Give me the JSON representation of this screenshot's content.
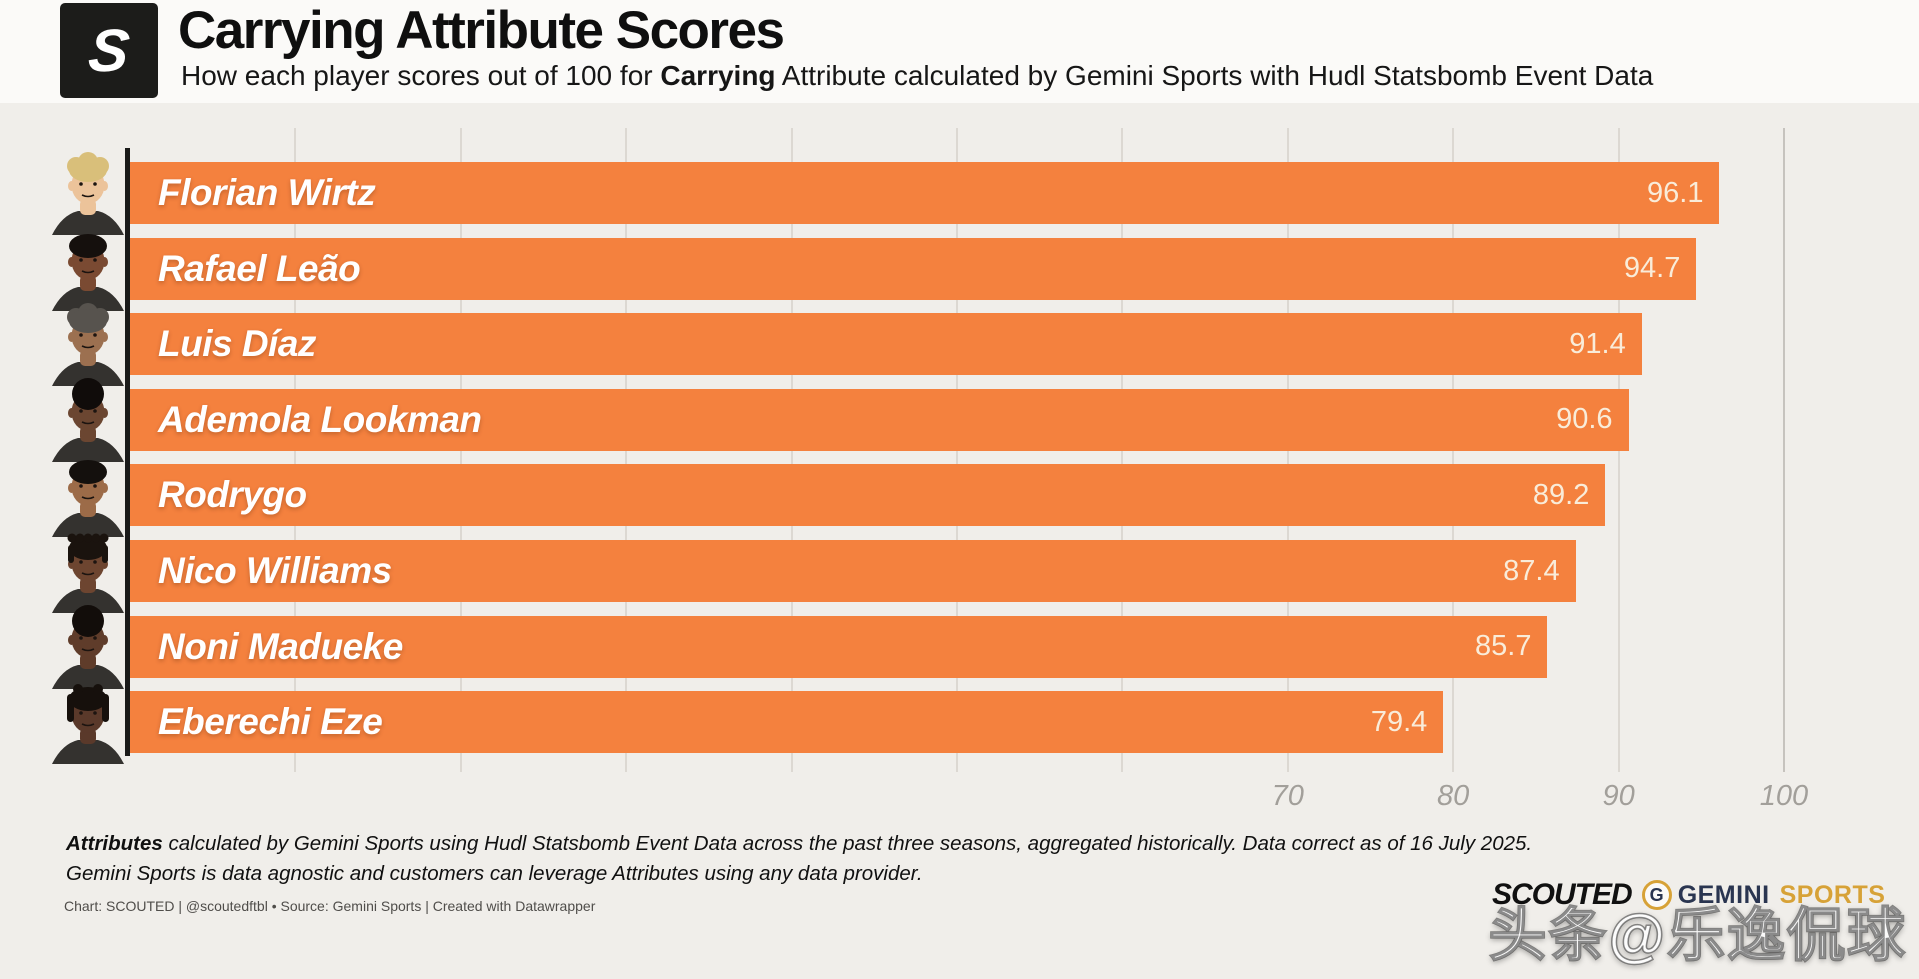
{
  "header": {
    "logo_letter": "S",
    "title": "Carrying Attribute Scores",
    "subtitle": {
      "prefix": "How each player scores out of 100 for ",
      "bold": "Carrying",
      "suffix": " Attribute calculated by Gemini Sports with Hudl Statsbomb Event Data"
    }
  },
  "chart_data": {
    "type": "bar",
    "orientation": "horizontal",
    "title": "Carrying Attribute Scores",
    "categories": [
      "Florian Wirtz",
      "Rafael Leão",
      "Luis Díaz",
      "Ademola Lookman",
      "Rodrygo",
      "Nico Williams",
      "Noni Madueke",
      "Eberechi Eze"
    ],
    "values": [
      96.1,
      94.7,
      91.4,
      90.6,
      89.2,
      87.4,
      85.7,
      79.4
    ],
    "value_labels": [
      "96.1",
      "94.7",
      "91.4",
      "90.6",
      "89.2",
      "87.4",
      "85.7",
      "79.4"
    ],
    "xlim": [
      0,
      107
    ],
    "ticks": [
      70,
      80,
      90,
      100
    ],
    "gridline_values": [
      10,
      20,
      30,
      40,
      50,
      60,
      70,
      80,
      90,
      100
    ],
    "grid": true,
    "legend": "none",
    "bar_color": "#f4813e"
  },
  "players": [
    {
      "name": "Florian Wirtz",
      "value": 96.1,
      "skin": "#ecc39a",
      "hair": "#d9bf7a",
      "hair_type": "fluffy",
      "shirt": "#34322f"
    },
    {
      "name": "Rafael Leão",
      "value": 94.7,
      "skin": "#7a4a32",
      "hair": "#15100d",
      "hair_type": "short",
      "shirt": "#34322f"
    },
    {
      "name": "Luis Díaz",
      "value": 91.4,
      "skin": "#9c7050",
      "hair": "#57534e",
      "hair_type": "fluffy",
      "shirt": "#34322f"
    },
    {
      "name": "Ademola Lookman",
      "value": 90.6,
      "skin": "#6b4631",
      "hair": "#100c0a",
      "hair_type": "afro",
      "shirt": "#34322f"
    },
    {
      "name": "Rodrygo",
      "value": 89.2,
      "skin": "#9c6b48",
      "hair": "#14100d",
      "hair_type": "short",
      "shirt": "#34322f"
    },
    {
      "name": "Nico Williams",
      "value": 87.4,
      "skin": "#6d4530",
      "hair": "#1a130e",
      "hair_type": "braids",
      "shirt": "#34322f"
    },
    {
      "name": "Noni Madueke",
      "value": 85.7,
      "skin": "#5f3c2a",
      "hair": "#120d0a",
      "hair_type": "afro",
      "shirt": "#34322f"
    },
    {
      "name": "Eberechi Eze",
      "value": 79.4,
      "skin": "#5a392a",
      "hair": "#16100c",
      "hair_type": "dreads",
      "shirt": "#34322f"
    }
  ],
  "footer": {
    "note_bold": "Attributes",
    "note_line1_rest": " calculated by Gemini Sports using Hudl Statsbomb Event Data across the past three seasons, aggregated historically. Data correct as of 16 July 2025.",
    "note_line2": "Gemini Sports is data agnostic and customers can leverage Attributes using any data provider.",
    "credit": "Chart: SCOUTED | @scoutedftbl • Source: Gemini Sports | Created with Datawrapper"
  },
  "logos": {
    "scouted": "SCOUTED",
    "gemini_badge": "G",
    "gemini_word1": "GEMINI",
    "gemini_word2": "SPORTS"
  },
  "watermark": "头条@乐逸侃球",
  "colors": {
    "background": "#f0eeea",
    "header_background": "#fbfaf8",
    "bar": "#f4813e",
    "bar_name_label": "#ffffff",
    "bar_value_label": "#f9ecd9",
    "axis_line": "#1a1a19",
    "gridline_minor": "#dcd8d2",
    "gridline_major": "#c6c3be",
    "tick_label": "#a29f9a",
    "footer_text": "#101010",
    "credit_text": "#4f4d4a",
    "logo_badge_background": "#1c1c1a",
    "gemini_navy": "#2a3550",
    "gemini_gold": "#d7a237"
  }
}
